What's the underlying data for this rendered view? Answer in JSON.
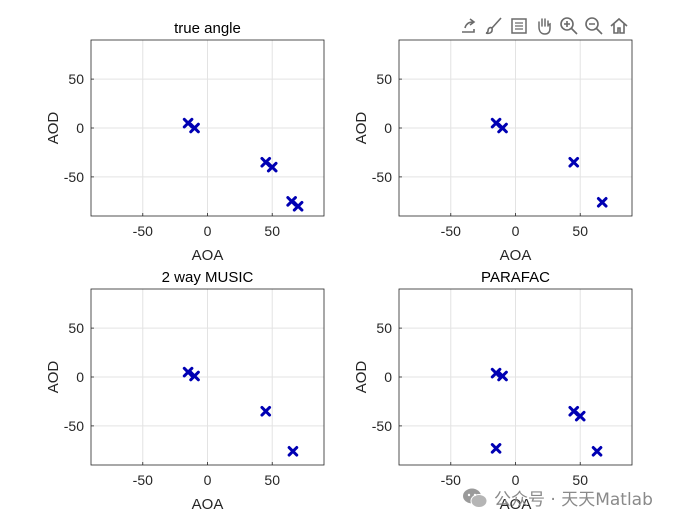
{
  "toolbar": {
    "icons": [
      "export-icon",
      "brush-icon",
      "data-tips-icon",
      "pan-hand-icon",
      "zoom-in-icon",
      "zoom-out-icon",
      "home-icon"
    ]
  },
  "watermark": {
    "text": "公众号 · 天天Matlab"
  },
  "colors": {
    "marker": "#0000b3",
    "grid": "#e3e3e3",
    "axis": "#262626"
  },
  "chart_data": [
    {
      "type": "scatter",
      "title": "true angle",
      "xlabel": "AOA",
      "ylabel": "AOD",
      "xlim": [
        -90,
        90
      ],
      "ylim": [
        -90,
        90
      ],
      "xticks": [
        -50,
        0,
        50
      ],
      "yticks": [
        -50,
        0,
        50
      ],
      "grid": true,
      "marker": "x",
      "series": [
        {
          "name": "points",
          "points": [
            [
              -15,
              5
            ],
            [
              -10,
              0
            ],
            [
              45,
              -35
            ],
            [
              50,
              -40
            ],
            [
              65,
              -75
            ],
            [
              70,
              -80
            ]
          ]
        }
      ]
    },
    {
      "type": "scatter",
      "title": "",
      "xlabel": "AOA",
      "ylabel": "AOD",
      "xlim": [
        -90,
        90
      ],
      "ylim": [
        -90,
        90
      ],
      "xticks": [
        -50,
        0,
        50
      ],
      "yticks": [
        -50,
        0,
        50
      ],
      "grid": true,
      "marker": "x",
      "series": [
        {
          "name": "points",
          "points": [
            [
              -15,
              5
            ],
            [
              -10,
              0
            ],
            [
              45,
              -35
            ],
            [
              67,
              -76
            ]
          ]
        }
      ]
    },
    {
      "type": "scatter",
      "title": "2 way MUSIC",
      "xlabel": "AOA",
      "ylabel": "AOD",
      "xlim": [
        -90,
        90
      ],
      "ylim": [
        -90,
        90
      ],
      "xticks": [
        -50,
        0,
        50
      ],
      "yticks": [
        -50,
        0,
        50
      ],
      "grid": true,
      "marker": "x",
      "series": [
        {
          "name": "points",
          "points": [
            [
              -15,
              5
            ],
            [
              -10,
              1
            ],
            [
              45,
              -35
            ],
            [
              66,
              -76
            ]
          ]
        }
      ]
    },
    {
      "type": "scatter",
      "title": "PARAFAC",
      "xlabel": "AOA",
      "ylabel": "AOD",
      "xlim": [
        -90,
        90
      ],
      "ylim": [
        -90,
        90
      ],
      "xticks": [
        -50,
        0,
        50
      ],
      "yticks": [
        -50,
        0,
        50
      ],
      "grid": true,
      "marker": "x",
      "series": [
        {
          "name": "points",
          "points": [
            [
              -15,
              4
            ],
            [
              -10,
              1
            ],
            [
              45,
              -35
            ],
            [
              50,
              -40
            ],
            [
              -15,
              -73
            ],
            [
              63,
              -76
            ]
          ]
        }
      ]
    }
  ]
}
